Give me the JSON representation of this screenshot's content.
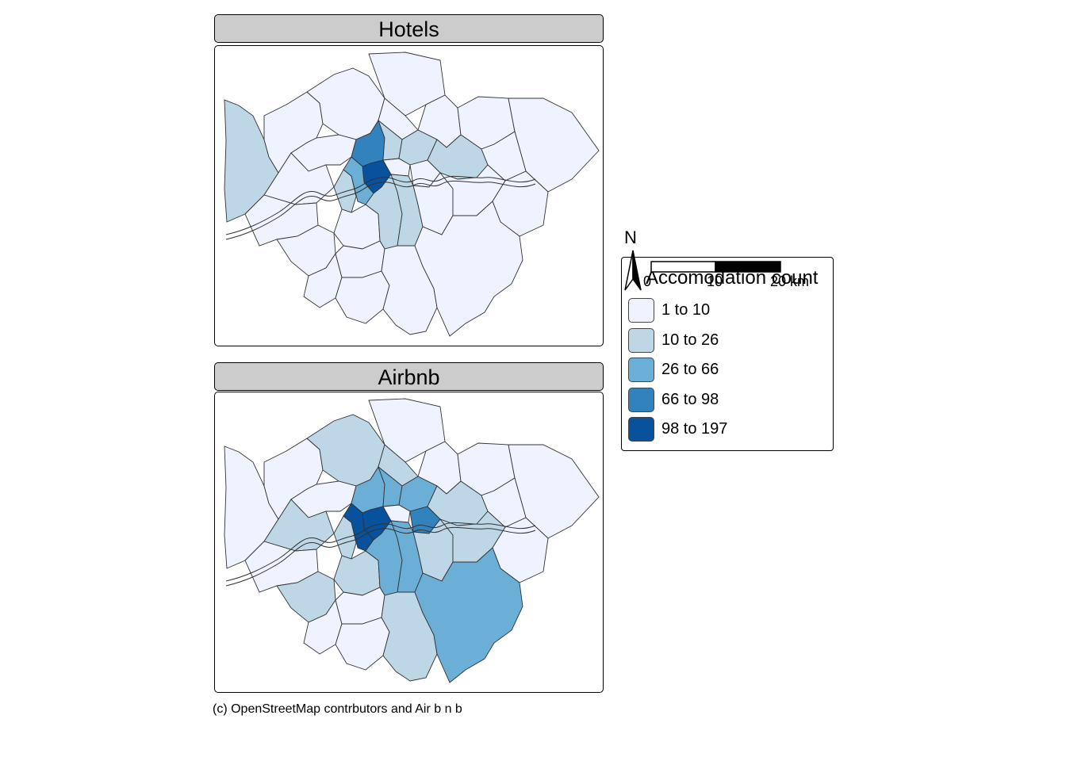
{
  "panels": [
    {
      "title": "Hotels",
      "class_by_borough": {
        "hillingdon": 1,
        "harrow": 0,
        "barnet": 0,
        "enfield": 0,
        "brent": 0,
        "haringey": 0,
        "waltham_forest": 0,
        "redbridge": 0,
        "havering": 0,
        "ealing": 0,
        "camden": 3,
        "islington": 1,
        "hackney": 1,
        "tower_hamlets": 0,
        "newham": 1,
        "barking_dagenham": 0,
        "westminster": 4,
        "city_of_london": 0,
        "hammersmith_fulham": 1,
        "kensington_chelsea": 2,
        "hounslow": 0,
        "richmond": 0,
        "wandsworth": 0,
        "lambeth": 1,
        "southwark": 1,
        "lewisham": 0,
        "greenwich": 0,
        "bexley": 0,
        "kingston": 0,
        "merton": 0,
        "sutton": 0,
        "croydon": 0,
        "bromley": 0
      }
    },
    {
      "title": "Airbnb",
      "class_by_borough": {
        "hillingdon": 0,
        "harrow": 0,
        "barnet": 1,
        "enfield": 0,
        "brent": 0,
        "haringey": 1,
        "waltham_forest": 0,
        "redbridge": 0,
        "havering": 0,
        "ealing": 1,
        "camden": 2,
        "islington": 2,
        "hackney": 2,
        "tower_hamlets": 3,
        "newham": 1,
        "barking_dagenham": 0,
        "westminster": 4,
        "city_of_london": 0,
        "hammersmith_fulham": 1,
        "kensington_chelsea": 4,
        "hounslow": 0,
        "richmond": 1,
        "wandsworth": 1,
        "lambeth": 2,
        "southwark": 2,
        "lewisham": 1,
        "greenwich": 1,
        "bexley": 0,
        "kingston": 0,
        "merton": 0,
        "sutton": 0,
        "croydon": 1,
        "bromley": 2
      }
    }
  ],
  "legend": {
    "title": "Accomodation count",
    "classes": [
      {
        "label": "1 to 10",
        "color": "#eff3ff"
      },
      {
        "label": "10 to 26",
        "color": "#bdd7e7"
      },
      {
        "label": "26 to 66",
        "color": "#6baed6"
      },
      {
        "label": "66 to 98",
        "color": "#3182bd"
      },
      {
        "label": "98 to 197",
        "color": "#08519c"
      }
    ]
  },
  "compass": {
    "label": "N",
    "icon": "north-arrow-icon"
  },
  "scale_bar": {
    "ticks": [
      "0",
      "10",
      "20 km"
    ]
  },
  "credits": "(c) OpenStreetMap contrbutors and Air b n b"
}
